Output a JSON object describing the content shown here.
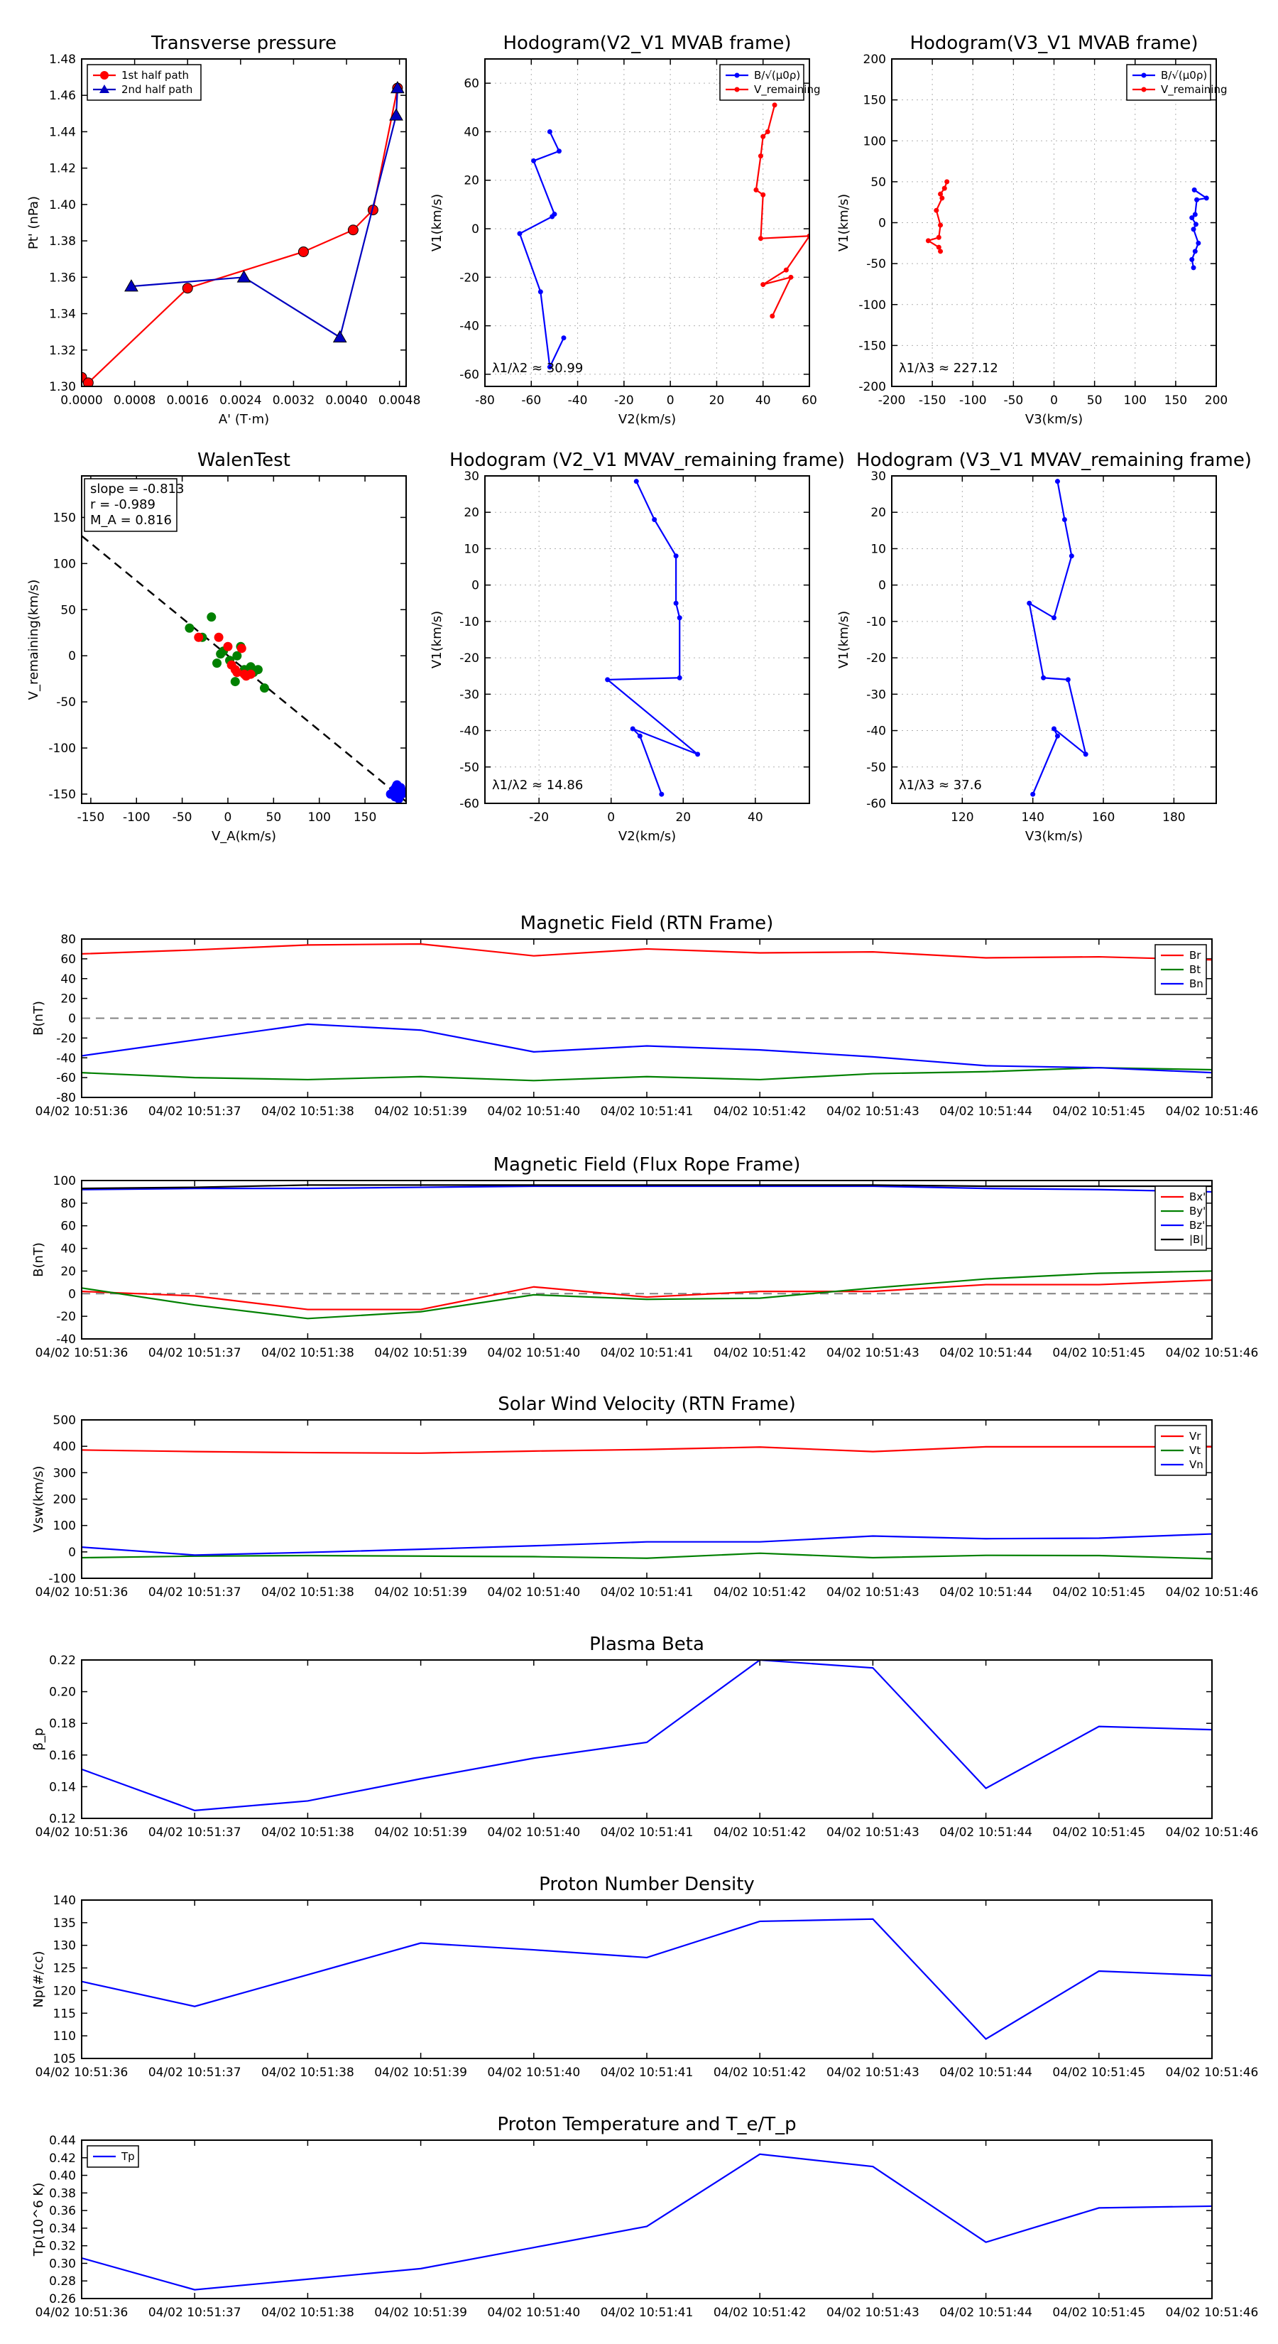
{
  "chart_data": [
    {
      "id": "tp",
      "type": "scatter",
      "title": "Transverse pressure",
      "xlabel": "A' (T·m)",
      "ylabel": "Pt' (nPa)",
      "xlim": [
        0.0,
        0.0049
      ],
      "ylim": [
        1.3,
        1.48
      ],
      "xticks": [
        0.0,
        0.0008,
        0.0016,
        0.0024,
        0.0032,
        0.004,
        0.0048
      ],
      "xticklabels": [
        "0.0000",
        "0.0008",
        "0.0016",
        "0.0024",
        "0.0032",
        "0.0040",
        "0.0048"
      ],
      "yticks": [
        1.3,
        1.32,
        1.34,
        1.36,
        1.38,
        1.4,
        1.42,
        1.44,
        1.46,
        1.48
      ],
      "yticklabels": [
        "1.30",
        "1.32",
        "1.34",
        "1.36",
        "1.38",
        "1.40",
        "1.42",
        "1.44",
        "1.46",
        "1.48"
      ],
      "grid": false,
      "legend": {
        "position": "top-left"
      },
      "series": [
        {
          "name": "1st half path",
          "color": "#ff0000",
          "marker": "circle",
          "x": [
            0.0,
            0.0001,
            0.0016,
            0.00335,
            0.0041,
            0.0044,
            0.00477
          ],
          "y": [
            1.305,
            1.302,
            1.354,
            1.374,
            1.386,
            1.397,
            1.464
          ]
        },
        {
          "name": "2nd half path",
          "color": "#0000c0",
          "marker": "triangle",
          "x": [
            0.00477,
            0.00475,
            0.0039,
            0.00245,
            0.00075
          ],
          "y": [
            1.464,
            1.449,
            1.327,
            1.36,
            1.355
          ]
        }
      ]
    },
    {
      "id": "h21",
      "type": "line",
      "title": "Hodogram(V2_V1 MVAB frame)",
      "xlabel": "V2(km/s)",
      "ylabel": "V1(km/s)",
      "xlim": [
        -80,
        60
      ],
      "ylim": [
        -65,
        70
      ],
      "xticks": [
        -80,
        -60,
        -40,
        -20,
        0,
        20,
        40,
        60
      ],
      "yticks": [
        -60,
        -40,
        -20,
        0,
        20,
        40,
        60
      ],
      "grid": true,
      "legend": {
        "position": "top-right"
      },
      "annotation": "λ1/λ2 ≈ 30.99",
      "series": [
        {
          "name": "B/√(μ0ρ)",
          "color": "#0000ff",
          "x": [
            -52,
            -48,
            -59,
            -50,
            -51,
            -65,
            -56,
            -52,
            -46
          ],
          "y": [
            40,
            32,
            28,
            6,
            5,
            -2,
            -26,
            -57,
            -45
          ]
        },
        {
          "name": "V_remaining",
          "color": "#ff0000",
          "x": [
            45,
            42,
            40,
            39,
            37,
            40,
            39,
            60,
            50,
            40,
            52,
            44
          ],
          "y": [
            51,
            40,
            38,
            30,
            16,
            14,
            -4,
            -3,
            -17,
            -23,
            -20,
            -36
          ]
        }
      ]
    },
    {
      "id": "h31",
      "type": "line",
      "title": "Hodogram(V3_V1 MVAB frame)",
      "xlabel": "V3(km/s)",
      "ylabel": "V1(km/s)",
      "xlim": [
        -200,
        200
      ],
      "ylim": [
        -200,
        200
      ],
      "xticks": [
        -200,
        -150,
        -100,
        -50,
        0,
        50,
        100,
        150,
        200
      ],
      "yticks": [
        -200,
        -150,
        -100,
        -50,
        0,
        50,
        100,
        150,
        200
      ],
      "grid": true,
      "legend": {
        "position": "top-right"
      },
      "annotation": "λ1/λ3 ≈ 227.12",
      "series": [
        {
          "name": "B/√(μ0ρ)",
          "color": "#0000ff",
          "x": [
            173,
            188,
            176,
            174,
            170,
            175,
            172,
            178,
            174,
            170,
            172
          ],
          "y": [
            40,
            30,
            28,
            10,
            6,
            -2,
            -8,
            -25,
            -35,
            -45,
            -55
          ]
        },
        {
          "name": "V_remaining",
          "color": "#ff0000",
          "x": [
            -132,
            -135,
            -140,
            -138,
            -145,
            -140,
            -142,
            -155,
            -142,
            -140
          ],
          "y": [
            50,
            42,
            35,
            30,
            15,
            -3,
            -18,
            -22,
            -30,
            -35
          ]
        }
      ]
    },
    {
      "id": "walen",
      "type": "scatter",
      "title": "WalenTest",
      "xlabel": "V_A(km/s)",
      "ylabel": "V_remaining(km/s)",
      "xlim": [
        -160,
        195
      ],
      "ylim": [
        -160,
        195
      ],
      "xticks": [
        -150,
        -100,
        -50,
        0,
        50,
        100,
        150
      ],
      "yticks": [
        -150,
        -100,
        -50,
        0,
        50,
        100,
        150
      ],
      "grid": false,
      "fit_line": {
        "x": [
          -160,
          195
        ],
        "y": [
          130,
          -158
        ]
      },
      "text_box": [
        "slope = -0.813",
        "r = -0.989",
        "M_A = 0.816"
      ],
      "series": [
        {
          "name": "green",
          "color": "#008000",
          "x": [
            -42,
            -28,
            -18,
            -12,
            -8,
            2,
            8,
            14,
            18,
            25,
            28,
            33,
            40,
            -5,
            10
          ],
          "y": [
            30,
            20,
            42,
            -8,
            2,
            -5,
            -28,
            10,
            -15,
            -12,
            -18,
            -15,
            -35,
            5,
            0
          ]
        },
        {
          "name": "red",
          "color": "#ff0000",
          "x": [
            -32,
            -10,
            0,
            4,
            8,
            10,
            18,
            20,
            25,
            15
          ],
          "y": [
            20,
            20,
            10,
            -10,
            -15,
            -18,
            -20,
            -22,
            -20,
            8
          ]
        },
        {
          "name": "blue",
          "color": "#0000ff",
          "x": [
            178,
            182,
            184,
            186,
            188,
            190,
            183,
            185,
            189,
            192,
            187,
            181
          ],
          "y": [
            -150,
            -145,
            -142,
            -148,
            -152,
            -146,
            -153,
            -140,
            -143,
            -149,
            -155,
            -147
          ]
        }
      ]
    },
    {
      "id": "hv21",
      "type": "line",
      "title": "Hodogram (V2_V1 MVAV_remaining frame)",
      "xlabel": "V2(km/s)",
      "ylabel": "V1(km/s)",
      "xlim": [
        -35,
        55
      ],
      "ylim": [
        -60,
        30
      ],
      "xticks": [
        -20,
        0,
        20,
        40
      ],
      "yticks": [
        -60,
        -50,
        -40,
        -30,
        -20,
        -10,
        0,
        10,
        20,
        30
      ],
      "grid": true,
      "annotation": "λ1/λ2 ≈ 14.86",
      "series": [
        {
          "name": "B",
          "color": "#0000ff",
          "x": [
            7,
            12,
            18,
            18,
            19,
            19,
            -1,
            24,
            6,
            8,
            14
          ],
          "y": [
            28.5,
            18,
            8,
            -5,
            -9,
            -25.5,
            -26,
            -46.5,
            -39.5,
            -41.5,
            -57.5
          ]
        }
      ]
    },
    {
      "id": "hv31",
      "type": "line",
      "title": "Hodogram (V3_V1 MVAV_remaining frame)",
      "xlabel": "V3(km/s)",
      "ylabel": "V1(km/s)",
      "xlim": [
        100,
        192
      ],
      "ylim": [
        -60,
        30
      ],
      "xticks": [
        120,
        140,
        160,
        180
      ],
      "yticks": [
        -60,
        -50,
        -40,
        -30,
        -20,
        -10,
        0,
        10,
        20,
        30
      ],
      "grid": true,
      "annotation": "λ1/λ3 ≈ 37.6",
      "series": [
        {
          "name": "B",
          "color": "#0000ff",
          "x": [
            147,
            149,
            151,
            146,
            139,
            143,
            150,
            155,
            146,
            147,
            140
          ],
          "y": [
            28.5,
            18,
            8,
            -9,
            -5,
            -25.5,
            -26,
            -46.5,
            -39.5,
            -41.5,
            -57.5
          ]
        }
      ]
    },
    {
      "id": "brtn",
      "type": "line",
      "title": "Magnetic Field (RTN Frame)",
      "xlabel": "",
      "ylabel": "B(nT)",
      "x": [
        "04/02 10:51:36",
        "04/02 10:51:37",
        "04/02 10:51:38",
        "04/02 10:51:39",
        "04/02 10:51:40",
        "04/02 10:51:41",
        "04/02 10:51:42",
        "04/02 10:51:43",
        "04/02 10:51:44",
        "04/02 10:51:45",
        "04/02 10:51:46"
      ],
      "ylim": [
        -80,
        80
      ],
      "yticks": [
        -80,
        -60,
        -40,
        -20,
        0,
        20,
        40,
        60,
        80
      ],
      "zero_line": true,
      "grid": false,
      "legend": {
        "position": "top-right"
      },
      "series": [
        {
          "name": "Br",
          "color": "#ff0000",
          "values": [
            65,
            69,
            74,
            75,
            63,
            70,
            66,
            67,
            61,
            62,
            59
          ]
        },
        {
          "name": "Bt",
          "color": "#008000",
          "values": [
            -55,
            -60,
            -62,
            -59,
            -63,
            -59,
            -62,
            -56,
            -54,
            -50,
            -52
          ]
        },
        {
          "name": "Bn",
          "color": "#0000ff",
          "values": [
            -38,
            -22,
            -6,
            -12,
            -34,
            -28,
            -32,
            -39,
            -48,
            -50,
            -55
          ]
        }
      ]
    },
    {
      "id": "bfr",
      "type": "line",
      "title": "Magnetic Field (Flux Rope Frame)",
      "xlabel": "",
      "ylabel": "B(nT)",
      "x": [
        "04/02 10:51:36",
        "04/02 10:51:37",
        "04/02 10:51:38",
        "04/02 10:51:39",
        "04/02 10:51:40",
        "04/02 10:51:41",
        "04/02 10:51:42",
        "04/02 10:51:43",
        "04/02 10:51:44",
        "04/02 10:51:45",
        "04/02 10:51:46"
      ],
      "ylim": [
        -40,
        100
      ],
      "yticks": [
        -40,
        -20,
        0,
        20,
        40,
        60,
        80,
        100
      ],
      "zero_line": true,
      "grid": false,
      "legend": {
        "position": "top-right"
      },
      "series": [
        {
          "name": "Bx'",
          "color": "#ff0000",
          "values": [
            2,
            -2,
            -14,
            -14,
            6,
            -3,
            2,
            2,
            8,
            8,
            12
          ]
        },
        {
          "name": "By'",
          "color": "#008000",
          "values": [
            5,
            -10,
            -22,
            -16,
            -1,
            -5,
            -4,
            5,
            13,
            18,
            20
          ]
        },
        {
          "name": "Bz'",
          "color": "#0000ff",
          "values": [
            92,
            93,
            93,
            94,
            95,
            95,
            95,
            95,
            93,
            92,
            90
          ]
        },
        {
          "name": "|B|",
          "color": "#000000",
          "values": [
            93,
            94,
            96,
            96,
            96,
            96,
            96,
            96,
            95,
            95,
            95
          ]
        }
      ]
    },
    {
      "id": "vsw",
      "type": "line",
      "title": "Solar Wind Velocity (RTN Frame)",
      "xlabel": "",
      "ylabel": "Vsw(km/s)",
      "x": [
        "04/02 10:51:36",
        "04/02 10:51:37",
        "04/02 10:51:38",
        "04/02 10:51:39",
        "04/02 10:51:40",
        "04/02 10:51:41",
        "04/02 10:51:42",
        "04/02 10:51:43",
        "04/02 10:51:44",
        "04/02 10:51:45",
        "04/02 10:51:46"
      ],
      "ylim": [
        -100,
        500
      ],
      "yticks": [
        -100,
        0,
        100,
        200,
        300,
        400,
        500
      ],
      "grid": false,
      "legend": {
        "position": "top-right"
      },
      "series": [
        {
          "name": "Vr",
          "color": "#ff0000",
          "values": [
            386,
            380,
            376,
            374,
            382,
            388,
            397,
            380,
            398,
            398,
            398
          ]
        },
        {
          "name": "Vt",
          "color": "#008000",
          "values": [
            -22,
            -16,
            -14,
            -16,
            -18,
            -24,
            -5,
            -22,
            -13,
            -14,
            -26
          ]
        },
        {
          "name": "Vn",
          "color": "#0000ff",
          "values": [
            18,
            -12,
            -2,
            10,
            23,
            38,
            38,
            60,
            50,
            52,
            68
          ]
        }
      ]
    },
    {
      "id": "beta",
      "type": "line",
      "title": "Plasma Beta",
      "xlabel": "",
      "ylabel": "β_p",
      "x": [
        "04/02 10:51:36",
        "04/02 10:51:37",
        "04/02 10:51:38",
        "04/02 10:51:39",
        "04/02 10:51:40",
        "04/02 10:51:41",
        "04/02 10:51:42",
        "04/02 10:51:43",
        "04/02 10:51:44",
        "04/02 10:51:45",
        "04/02 10:51:46"
      ],
      "ylim": [
        0.12,
        0.22
      ],
      "yticks": [
        0.12,
        0.14,
        0.16,
        0.18,
        0.2,
        0.22
      ],
      "yticklabels": [
        "0.12",
        "0.14",
        "0.16",
        "0.18",
        "0.20",
        "0.22"
      ],
      "grid": false,
      "series": [
        {
          "name": "beta",
          "color": "#0000ff",
          "values": [
            0.151,
            0.125,
            0.131,
            0.145,
            0.158,
            0.168,
            0.22,
            0.215,
            0.139,
            0.178,
            0.176
          ]
        }
      ]
    },
    {
      "id": "np",
      "type": "line",
      "title": "Proton Number Density",
      "xlabel": "",
      "ylabel": "Np(#/cc)",
      "x": [
        "04/02 10:51:36",
        "04/02 10:51:37",
        "04/02 10:51:38",
        "04/02 10:51:39",
        "04/02 10:51:40",
        "04/02 10:51:41",
        "04/02 10:51:42",
        "04/02 10:51:43",
        "04/02 10:51:44",
        "04/02 10:51:45",
        "04/02 10:51:46"
      ],
      "ylim": [
        105,
        140
      ],
      "yticks": [
        105,
        110,
        115,
        120,
        125,
        130,
        135,
        140
      ],
      "grid": false,
      "series": [
        {
          "name": "Np",
          "color": "#0000ff",
          "values": [
            122,
            116.5,
            123.5,
            130.5,
            129,
            127.3,
            135.3,
            135.8,
            109.3,
            124.3,
            123.3
          ]
        }
      ]
    },
    {
      "id": "tpr",
      "type": "line",
      "title": "Proton Temperature and T_e/T_p",
      "xlabel": "",
      "ylabel": "Tp(10^6 K)",
      "x": [
        "04/02 10:51:36",
        "04/02 10:51:37",
        "04/02 10:51:38",
        "04/02 10:51:39",
        "04/02 10:51:40",
        "04/02 10:51:41",
        "04/02 10:51:42",
        "04/02 10:51:43",
        "04/02 10:51:44",
        "04/02 10:51:45",
        "04/02 10:51:46"
      ],
      "ylim": [
        0.26,
        0.44
      ],
      "yticks": [
        0.26,
        0.28,
        0.3,
        0.32,
        0.34,
        0.36,
        0.38,
        0.4,
        0.42,
        0.44
      ],
      "yticklabels": [
        "0.26",
        "0.28",
        "0.30",
        "0.32",
        "0.34",
        "0.36",
        "0.38",
        "0.40",
        "0.42",
        "0.44"
      ],
      "grid": false,
      "legend": {
        "position": "top-left"
      },
      "series": [
        {
          "name": "Tp",
          "color": "#0000ff",
          "values": [
            0.306,
            0.27,
            0.282,
            0.294,
            0.318,
            0.342,
            0.424,
            0.41,
            0.324,
            0.363,
            0.365
          ]
        }
      ]
    }
  ]
}
